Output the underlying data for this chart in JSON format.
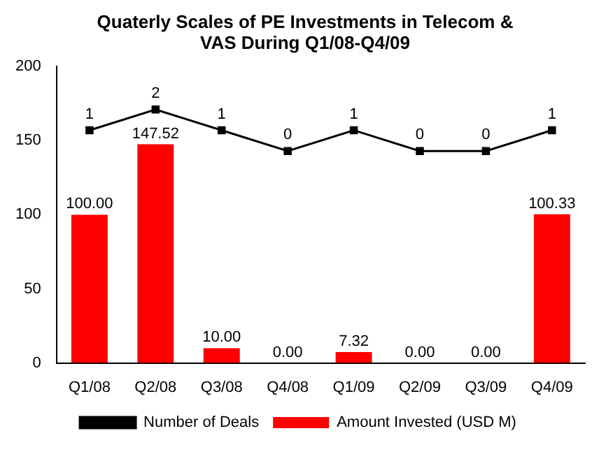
{
  "chart_data": {
    "type": "bar",
    "title": "Quaterly Scales of PE Investments in Telecom & VAS During Q1/08-Q4/09",
    "categories": [
      "Q1/08",
      "Q2/08",
      "Q3/08",
      "Q4/08",
      "Q1/09",
      "Q2/09",
      "Q3/09",
      "Q4/09"
    ],
    "series": [
      {
        "name": "Amount Invested (USD M)",
        "color": "#ff0000",
        "values": [
          100.0,
          147.52,
          10.0,
          0.0,
          7.32,
          0.0,
          0.0,
          100.33
        ],
        "value_labels": [
          "100.00",
          "147.52",
          "10.00",
          "0.00",
          "7.32",
          "0.00",
          "0.00",
          "100.33"
        ]
      },
      {
        "name": "Number of Deals",
        "type": "line",
        "axis": "y2",
        "color": "#000000",
        "marker": "square",
        "values": [
          1,
          2,
          1,
          0,
          1,
          0,
          0,
          1
        ],
        "value_labels": [
          "1",
          "2",
          "1",
          "0",
          "1",
          "0",
          "0",
          "1"
        ]
      }
    ],
    "ylim": [
      0,
      200
    ],
    "yticks": [
      0,
      50,
      100,
      150,
      200
    ],
    "y2lim": [
      -10.2,
      4.07
    ],
    "tick_labels": "xy",
    "grid": false,
    "legend": "bottom"
  }
}
